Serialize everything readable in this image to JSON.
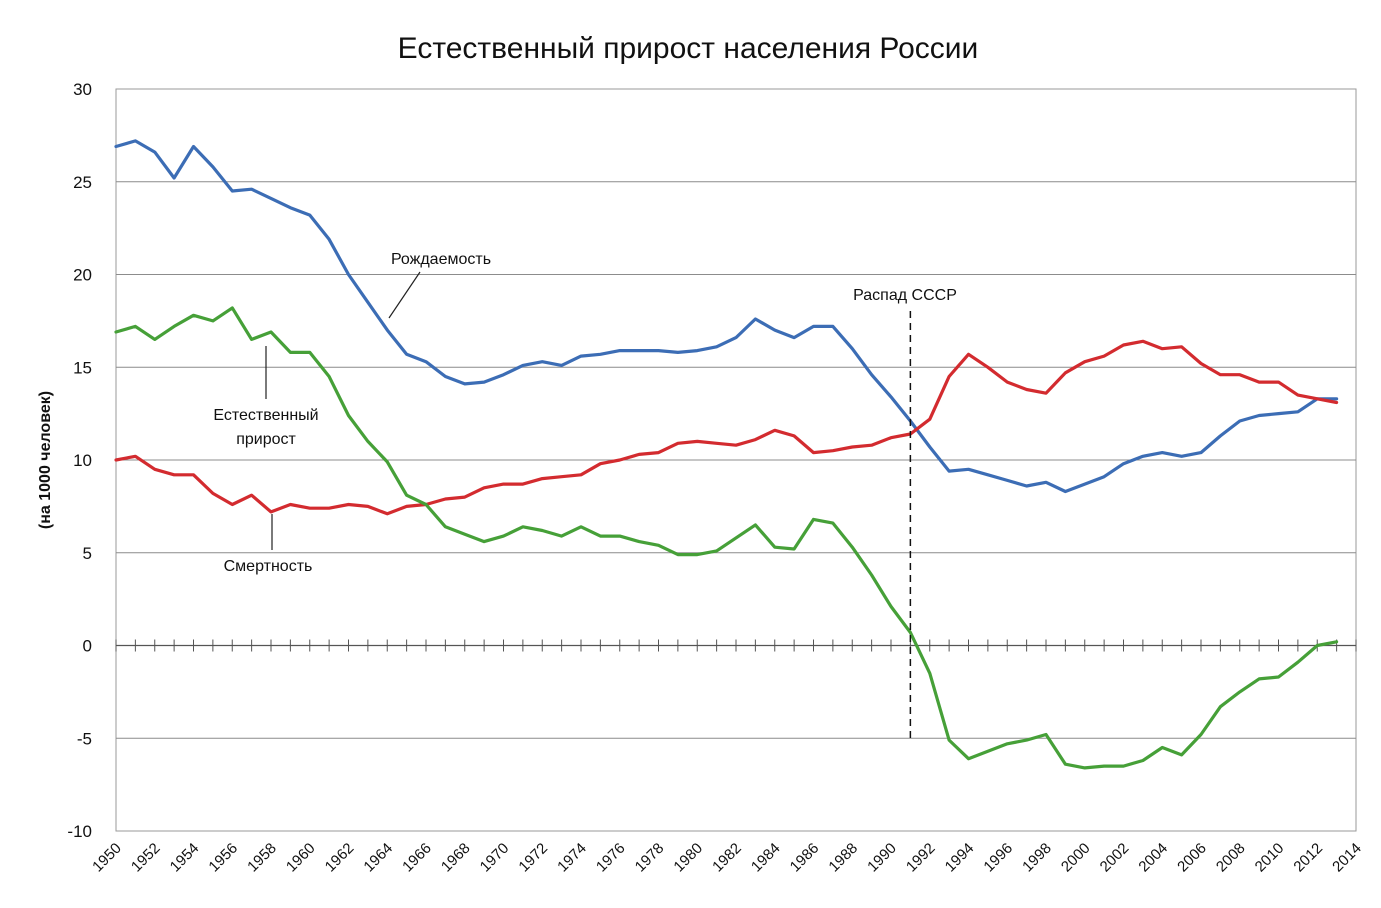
{
  "chart_data": {
    "type": "line",
    "title": "Естественный прирост населения России",
    "ylabel": "(на 1000 человек)",
    "xlabel": "",
    "xlim": [
      1950,
      2014
    ],
    "ylim": [
      -10,
      30
    ],
    "y_ticks": [
      "30",
      "25",
      "20",
      "15",
      "10",
      "5",
      "0",
      "-5",
      "-10"
    ],
    "x_ticks": [
      "1950",
      "1952",
      "1954",
      "1956",
      "1958",
      "1960",
      "1962",
      "1964",
      "1966",
      "1968",
      "1970",
      "1972",
      "1974",
      "1976",
      "1978",
      "1980",
      "1982",
      "1984",
      "1986",
      "1988",
      "1990",
      "1992",
      "1994",
      "1996",
      "1998",
      "2000",
      "2002",
      "2004",
      "2006",
      "2008",
      "2010",
      "2012",
      "2014"
    ],
    "grid": true,
    "legend": "none",
    "x": [
      1950,
      1951,
      1952,
      1953,
      1954,
      1955,
      1956,
      1957,
      1958,
      1959,
      1960,
      1961,
      1962,
      1963,
      1964,
      1965,
      1966,
      1967,
      1968,
      1969,
      1970,
      1971,
      1972,
      1973,
      1974,
      1975,
      1976,
      1977,
      1978,
      1979,
      1980,
      1981,
      1982,
      1983,
      1984,
      1985,
      1986,
      1987,
      1988,
      1989,
      1990,
      1991,
      1992,
      1993,
      1994,
      1995,
      1996,
      1997,
      1998,
      1999,
      2000,
      2001,
      2002,
      2003,
      2004,
      2005,
      2006,
      2007,
      2008,
      2009,
      2010,
      2011,
      2012,
      2013
    ],
    "series": [
      {
        "key": "birth",
        "color": "#3c6db5",
        "values": [
          26.9,
          27.2,
          26.6,
          25.2,
          26.9,
          25.8,
          24.5,
          24.6,
          24.1,
          23.6,
          23.2,
          21.9,
          20.0,
          18.5,
          17.0,
          15.7,
          15.3,
          14.5,
          14.1,
          14.2,
          14.6,
          15.1,
          15.3,
          15.1,
          15.6,
          15.7,
          15.9,
          15.9,
          15.9,
          15.8,
          15.9,
          16.1,
          16.6,
          17.6,
          17.0,
          16.6,
          17.2,
          17.2,
          16.0,
          14.6,
          13.4,
          12.1,
          10.7,
          9.4,
          9.5,
          9.2,
          8.9,
          8.6,
          8.8,
          8.3,
          8.7,
          9.1,
          9.8,
          10.2,
          10.4,
          10.2,
          10.4,
          11.3,
          12.1,
          12.4,
          12.5,
          12.6,
          13.3,
          13.3
        ]
      },
      {
        "key": "death",
        "color": "#d32b2f",
        "values": [
          10.0,
          10.2,
          9.5,
          9.2,
          9.2,
          8.2,
          7.6,
          8.1,
          7.2,
          7.6,
          7.4,
          7.4,
          7.6,
          7.5,
          7.1,
          7.5,
          7.6,
          7.9,
          8.0,
          8.5,
          8.7,
          8.7,
          9.0,
          9.1,
          9.2,
          9.8,
          10.0,
          10.3,
          10.4,
          10.9,
          11.0,
          10.9,
          10.8,
          11.1,
          11.6,
          11.3,
          10.4,
          10.5,
          10.7,
          10.8,
          11.2,
          11.4,
          12.2,
          14.5,
          15.7,
          15.0,
          14.2,
          13.8,
          13.6,
          14.7,
          15.3,
          15.6,
          16.2,
          16.4,
          16.0,
          16.1,
          15.2,
          14.6,
          14.6,
          14.2,
          14.2,
          13.5,
          13.3,
          13.1
        ]
      },
      {
        "key": "natural",
        "color": "#46a038",
        "values": [
          16.9,
          17.2,
          16.5,
          17.2,
          17.8,
          17.5,
          18.2,
          16.5,
          16.9,
          15.8,
          15.8,
          14.5,
          12.4,
          11.0,
          9.9,
          8.1,
          7.6,
          6.4,
          6.0,
          5.6,
          5.9,
          6.4,
          6.2,
          5.9,
          6.4,
          5.9,
          5.9,
          5.6,
          5.4,
          4.9,
          4.9,
          5.1,
          5.8,
          6.5,
          5.3,
          5.2,
          6.8,
          6.6,
          5.3,
          3.8,
          2.1,
          0.7,
          -1.5,
          -5.1,
          -6.1,
          -5.7,
          -5.3,
          -5.1,
          -4.8,
          -6.4,
          -6.6,
          -6.5,
          -6.5,
          -6.2,
          -5.5,
          -5.9,
          -4.8,
          -3.3,
          -2.5,
          -1.8,
          -1.7,
          -0.9,
          0.0,
          0.2
        ]
      }
    ],
    "annotations": {
      "birth": "Рождаемость",
      "death": "Смертность",
      "natural_line1": "Естественный",
      "natural_line2": "прирост",
      "ussr": "Распад СССР"
    },
    "ussr_year": 1991
  }
}
